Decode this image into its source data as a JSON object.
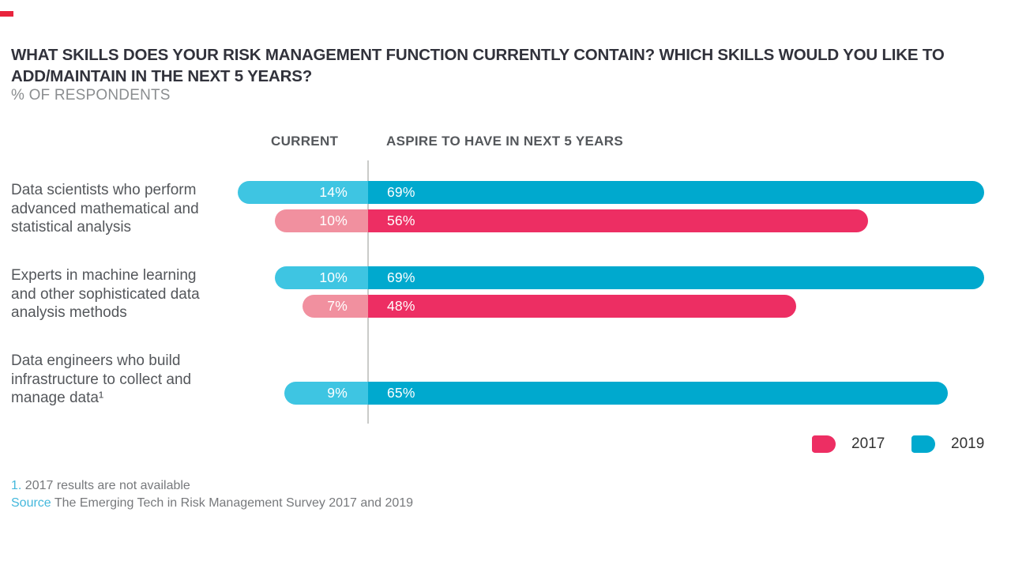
{
  "brand": {
    "dash_color": "#e8243d"
  },
  "header": {
    "title_line1": "WHAT SKILLS DOES YOUR RISK MANAGEMENT FUNCTION CURRENTLY CONTAIN? WHICH SKILLS WOULD YOU LIKE TO",
    "title_line2": "ADD/MAINTAIN IN THE NEXT 5 YEARS?",
    "subtitle": "% OF RESPONDENTS"
  },
  "columns": {
    "current": "CURRENT",
    "aspire": "ASPIRE TO HAVE IN NEXT 5 YEARS"
  },
  "colors": {
    "blue_dark": "#00a9ce",
    "blue_light": "#3ec5e2",
    "pink_dark": "#ed2e63",
    "pink_light": "#f1909f",
    "divider": "#cacbc9"
  },
  "legend": [
    {
      "label": "2017",
      "color": "#ed2e63"
    },
    {
      "label": "2019",
      "color": "#00a9ce"
    }
  ],
  "footnotes": {
    "note_marker": "1.",
    "note_text": " 2017 results are not available",
    "source_label": "Source",
    "source_text": " The Emerging Tech in Risk Management Survey 2017 and 2019"
  },
  "chart_data": {
    "type": "bar",
    "title": "What skills does your risk management function currently contain? Which skills would you like to add/maintain in the next 5 years?",
    "ylabel": "% of respondents",
    "column_headers": [
      "CURRENT",
      "ASPIRE TO HAVE IN NEXT 5 YEARS"
    ],
    "legend_entries": [
      "2017",
      "2019"
    ],
    "legend_position": "bottom-right",
    "groups": [
      {
        "label_lines": [
          "Data scientists who perform",
          "advanced mathematical and",
          "statistical analysis"
        ],
        "bars": [
          {
            "year": "2019",
            "current": 14,
            "aspire": 69,
            "current_label": "14%",
            "aspire_label": "69%"
          },
          {
            "year": "2017",
            "current": 10,
            "aspire": 56,
            "current_label": "10%",
            "aspire_label": "56%"
          }
        ]
      },
      {
        "label_lines": [
          "Experts in machine learning",
          "and other sophisticated data",
          "analysis methods"
        ],
        "bars": [
          {
            "year": "2019",
            "current": 10,
            "aspire": 69,
            "current_label": "10%",
            "aspire_label": "69%"
          },
          {
            "year": "2017",
            "current": 7,
            "aspire": 48,
            "current_label": "7%",
            "aspire_label": "48%"
          }
        ]
      },
      {
        "label_lines": [
          "Data engineers who build",
          "infrastructure to collect and",
          "manage data¹"
        ],
        "bars": [
          {
            "year": "2019",
            "current": 9,
            "aspire": 65,
            "current_label": "9%",
            "aspire_label": "65%"
          }
        ]
      }
    ]
  }
}
